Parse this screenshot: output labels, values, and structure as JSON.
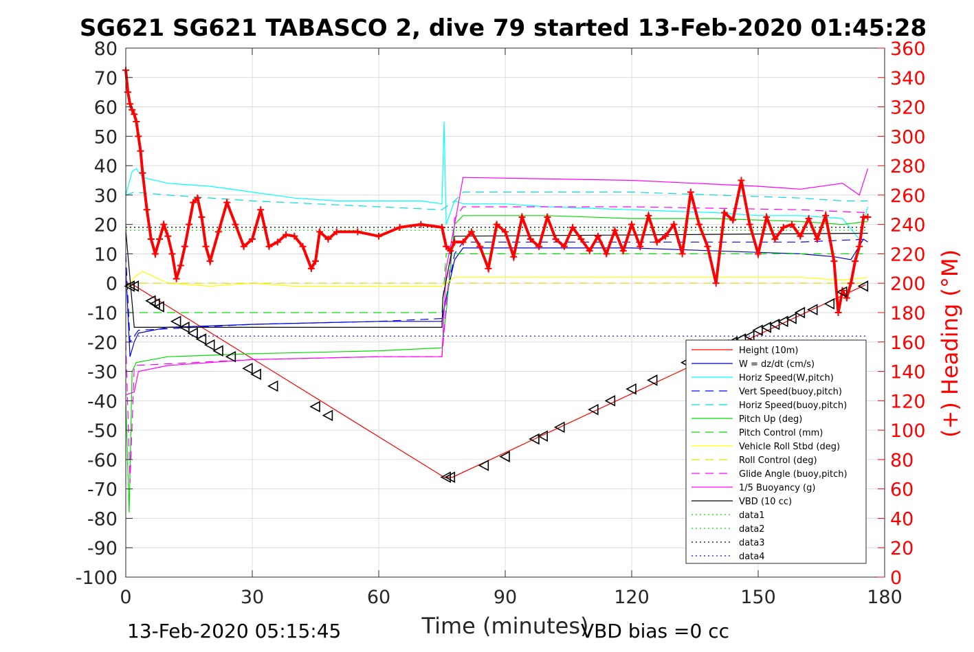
{
  "chart_data": {
    "type": "line",
    "title": "SG621 SG621 TABASCO 2, dive 79 started 13-Feb-2020 01:45:28",
    "xlabel": "Time (minutes)",
    "ylabel": "",
    "ylabel_right": "(+) Heading (°M)",
    "footer_left": "13-Feb-2020 05:15:45",
    "footer_right": "VBD bias =0 cc",
    "xlim": [
      0,
      180
    ],
    "ylim": [
      -100,
      80
    ],
    "ylim_right": [
      0,
      360
    ],
    "xticks": [
      0,
      30,
      60,
      90,
      120,
      150,
      180
    ],
    "yticks": [
      -100,
      -90,
      -80,
      -70,
      -60,
      -50,
      -40,
      -30,
      -20,
      -10,
      0,
      10,
      20,
      30,
      40,
      50,
      60,
      70,
      80
    ],
    "yticks_right": [
      0,
      20,
      40,
      60,
      80,
      100,
      120,
      140,
      160,
      180,
      200,
      220,
      240,
      260,
      280,
      300,
      320,
      340,
      360
    ],
    "grid": true,
    "legend_position": "bottom-right",
    "colors": {
      "red": "#ff0000",
      "blue": "#0000ff",
      "cyan": "#00ffff",
      "green": "#00dd00",
      "yellow": "#ffff00",
      "magenta": "#ff00ff",
      "black": "#000000",
      "navy": "#00008b"
    },
    "series": [
      {
        "name": "Height (10m)",
        "color": "#ff0000",
        "dash": "",
        "x": [
          0,
          2,
          75.5,
          77.5,
          175.5
        ],
        "y": [
          0,
          -0.8,
          -66,
          -66,
          -0.5
        ]
      },
      {
        "name": "W = dz/dt (cm/s)",
        "color": "#0000cc",
        "dash": "",
        "x": [
          0,
          1,
          2,
          3,
          10,
          30,
          60,
          75,
          76,
          78,
          80,
          100,
          120,
          140,
          160,
          168,
          172,
          175,
          176
        ],
        "y": [
          5,
          -25,
          -20,
          -17,
          -15,
          -14,
          -13,
          -13,
          -5,
          8,
          12,
          12,
          12,
          11,
          10,
          9,
          8,
          15,
          14
        ]
      },
      {
        "name": "Horiz Speed(W,pitch)",
        "color": "#00ffff",
        "dash": "",
        "x": [
          0,
          1.5,
          2.5,
          4,
          10,
          20,
          30,
          40,
          50,
          60,
          70,
          75,
          75.5,
          76,
          78,
          80,
          90,
          100,
          120,
          140,
          150,
          160,
          170,
          174,
          176
        ],
        "y": [
          30,
          38,
          39,
          36,
          34,
          33,
          31,
          29,
          28,
          28,
          28,
          27,
          55,
          20,
          28,
          27,
          27,
          26,
          25,
          24,
          23,
          23,
          22,
          15,
          26
        ]
      },
      {
        "name": "Vert Speed(buoy,pitch)",
        "color": "#0000ff",
        "dash": "12,8",
        "x": [
          0,
          1,
          2,
          3,
          30,
          60,
          75,
          76,
          78,
          80,
          120,
          160,
          176
        ],
        "y": [
          10,
          -20,
          -18,
          -16,
          -14,
          -13,
          -12,
          -5,
          10,
          14,
          14,
          14,
          15
        ]
      },
      {
        "name": "Horiz Speed(buoy,pitch)",
        "color": "#00dddd",
        "dash": "12,8",
        "x": [
          0,
          2,
          10,
          30,
          60,
          75,
          78,
          80,
          120,
          160,
          170,
          176
        ],
        "y": [
          30,
          31,
          30,
          28,
          26,
          25,
          28,
          31,
          31,
          29,
          28,
          28
        ]
      },
      {
        "name": "Pitch Up (deg)",
        "color": "#00dd00",
        "dash": "",
        "x": [
          0,
          0.8,
          1.5,
          2.5,
          10,
          30,
          60,
          75,
          76,
          78,
          80,
          100,
          120,
          140,
          160,
          170,
          176
        ],
        "y": [
          -40,
          -78,
          -30,
          -27,
          -25,
          -24,
          -23,
          -22,
          -10,
          20,
          23,
          23,
          22,
          22,
          21,
          20,
          21
        ]
      },
      {
        "name": "Pitch Control (mm)",
        "color": "#00dd00",
        "dash": "12,8",
        "x": [
          0,
          2,
          75,
          76,
          78,
          176
        ],
        "y": [
          -10,
          -10,
          -10,
          10,
          10,
          10
        ]
      },
      {
        "name": "Vehicle Roll Stbd (deg)",
        "color": "#ffff00",
        "dash": "",
        "x": [
          0,
          2,
          4,
          10,
          20,
          30,
          40,
          50,
          60,
          70,
          75,
          78,
          80,
          100,
          120,
          140,
          160,
          170,
          176
        ],
        "y": [
          -2,
          2,
          4,
          0,
          -1,
          0,
          -1,
          -1,
          -1,
          -1,
          -1,
          2,
          2,
          2,
          2,
          2,
          2,
          1,
          2
        ]
      },
      {
        "name": "Roll Control (deg)",
        "color": "#dddd00",
        "dash": "12,8",
        "x": [
          0,
          176
        ],
        "y": [
          0,
          0
        ]
      },
      {
        "name": "Glide Angle (buoy,pitch)",
        "color": "#ff00ff",
        "dash": "12,8",
        "x": [
          0,
          1,
          2,
          30,
          60,
          75,
          76,
          78,
          80,
          120,
          160,
          176
        ],
        "y": [
          -20,
          -68,
          -28,
          -26,
          -25,
          -25,
          -8,
          22,
          26,
          26,
          25,
          24
        ]
      },
      {
        "name": "1/5 Buoyancy (g)",
        "color": "#ff00ff",
        "dash": "",
        "x": [
          0,
          2,
          3,
          10,
          30,
          60,
          75,
          76,
          78,
          80,
          120,
          150,
          160,
          170,
          174,
          176
        ],
        "y": [
          -38,
          -37,
          -30,
          -28,
          -26,
          -25,
          -25,
          5,
          20,
          36,
          35,
          33,
          32,
          34,
          30,
          39
        ]
      },
      {
        "name": "VBD (10 cc)",
        "color": "#000000",
        "dash": "",
        "x": [
          0,
          2,
          2.1,
          75,
          75.2,
          78,
          176
        ],
        "y": [
          18,
          -15,
          -15,
          -15,
          -5,
          16,
          17
        ]
      },
      {
        "name": "data1",
        "color": "#00dd00",
        "dash": "2,4",
        "x": [
          0,
          176
        ],
        "y": [
          18,
          18
        ]
      },
      {
        "name": "data2",
        "color": "#00dd00",
        "dash": "2,4",
        "x": [
          0,
          176
        ],
        "y": [
          19,
          19
        ]
      },
      {
        "name": "data3",
        "color": "#000000",
        "dash": "2,4",
        "x": [
          0,
          176
        ],
        "y": [
          19,
          19
        ]
      },
      {
        "name": "data4",
        "color": "#0000ff",
        "dash": "2,4",
        "x": [
          0,
          176
        ],
        "y": [
          -18,
          -18
        ]
      }
    ],
    "heading_series": {
      "name": "Heading",
      "color": "#ff0000",
      "x": [
        0,
        0.5,
        1,
        1.5,
        2,
        2.5,
        3,
        3.5,
        4,
        5,
        6,
        7,
        8,
        9,
        10,
        11,
        12,
        13,
        14,
        15,
        16,
        17,
        18,
        19,
        20,
        22,
        24,
        26,
        28,
        30,
        32,
        34,
        36,
        38,
        40,
        42,
        44,
        45,
        46,
        48,
        50,
        55,
        60,
        65,
        70,
        75,
        76,
        77,
        78,
        80,
        82,
        84,
        86,
        88,
        90,
        92,
        94,
        96,
        98,
        100,
        102,
        104,
        106,
        108,
        110,
        112,
        114,
        116,
        118,
        120,
        122,
        124,
        126,
        128,
        130,
        132,
        134,
        136,
        138,
        140,
        142,
        144,
        146,
        148,
        150,
        152,
        154,
        156,
        158,
        160,
        162,
        164,
        166,
        168,
        169,
        170,
        171,
        172,
        173,
        174,
        175,
        176
      ],
      "y": [
        345,
        330,
        322,
        318,
        315,
        310,
        300,
        290,
        275,
        250,
        230,
        220,
        230,
        240,
        232,
        220,
        203,
        212,
        225,
        240,
        255,
        258,
        245,
        225,
        215,
        235,
        255,
        240,
        225,
        230,
        250,
        225,
        228,
        233,
        232,
        225,
        210,
        215,
        235,
        230,
        235,
        235,
        232,
        238,
        240,
        238,
        225,
        222,
        228,
        228,
        235,
        225,
        210,
        240,
        235,
        218,
        245,
        230,
        225,
        245,
        230,
        225,
        238,
        230,
        222,
        232,
        220,
        236,
        222,
        240,
        225,
        246,
        228,
        232,
        240,
        220,
        262,
        240,
        225,
        200,
        248,
        243,
        270,
        240,
        220,
        245,
        230,
        238,
        240,
        232,
        244,
        230,
        246,
        215,
        180,
        195,
        190,
        200,
        215,
        225,
        245,
        245
      ]
    },
    "triangle_markers": {
      "x": [
        1,
        2,
        6,
        7,
        8,
        12,
        14,
        16,
        18,
        20,
        22,
        25,
        29,
        31,
        35,
        45,
        48,
        76,
        77,
        85,
        90,
        97,
        99,
        103,
        111,
        115,
        120,
        125,
        133,
        142,
        144,
        146,
        148,
        150,
        152,
        154,
        156,
        158,
        160,
        163,
        167,
        170,
        175
      ],
      "y": [
        -1,
        -1,
        -6,
        -7,
        -8,
        -13,
        -15,
        -17,
        -19,
        -21,
        -23,
        -25,
        -29,
        -31,
        -35,
        -42,
        -45,
        -66,
        -66,
        -62,
        -59,
        -53,
        -52,
        -49,
        -43,
        -40,
        -36,
        -33,
        -27,
        -21,
        -20,
        -19,
        -18,
        -16,
        -15,
        -14,
        -13,
        -12,
        -10,
        -9,
        -7,
        -3,
        -1
      ]
    }
  }
}
